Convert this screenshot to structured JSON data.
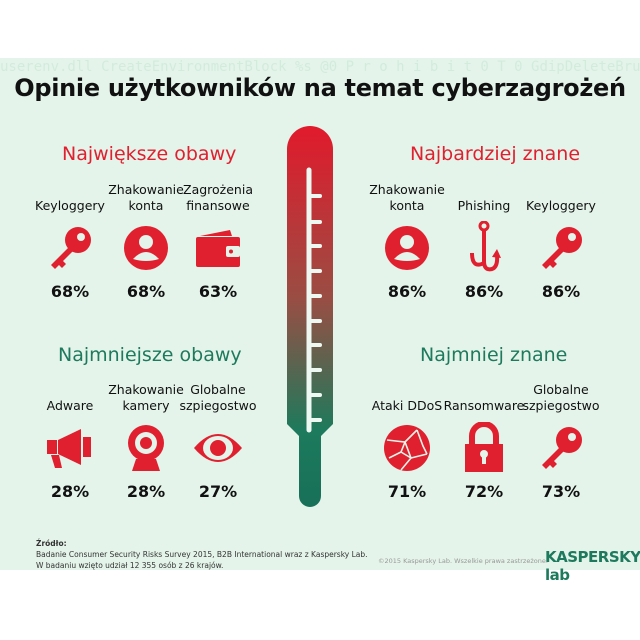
{
  "title": "Opinie użytkowników na temat cyberzagrożeń",
  "colors": {
    "red": "#e0202f",
    "green": "#1d7a5c",
    "background": "#e4f4ea"
  },
  "sections": [
    {
      "heading": "Największe obawy",
      "items": [
        {
          "label": "Keyloggery",
          "icon": "key-icon",
          "value": "68%"
        },
        {
          "label": "Zhakowanie konta",
          "icon": "user-icon",
          "value": "68%"
        },
        {
          "label": "Zagrożenia finansowe",
          "icon": "wallet-icon",
          "value": "63%"
        }
      ]
    },
    {
      "heading": "Najbardziej znane",
      "items": [
        {
          "label": "Zhakowanie konta",
          "icon": "user-icon",
          "value": "86%"
        },
        {
          "label": "Phishing",
          "icon": "fishhook-icon",
          "value": "86%"
        },
        {
          "label": "Keyloggery",
          "icon": "key-icon",
          "value": "86%"
        }
      ]
    },
    {
      "heading": "Najmniejsze obawy",
      "items": [
        {
          "label": "Adware",
          "icon": "megaphone-icon",
          "value": "28%"
        },
        {
          "label": "Zhakowanie kamery",
          "icon": "webcam-icon",
          "value": "28%"
        },
        {
          "label": "Globalne szpiegostwo",
          "icon": "eye-icon",
          "value": "27%"
        }
      ]
    },
    {
      "heading": "Najmniej znane",
      "items": [
        {
          "label": "Ataki DDoS",
          "icon": "network-globe-icon",
          "value": "71%"
        },
        {
          "label": "Ransomware",
          "icon": "padlock-icon",
          "value": "72%"
        },
        {
          "label": "Globalne szpiegostwo",
          "icon": "key-icon",
          "value": "73%"
        }
      ]
    }
  ],
  "footer": {
    "source_label": "Źródło:",
    "line1": "Badanie Consumer Security Risks Survey 2015, B2B International wraz z Kaspersky Lab.",
    "line2": "W badaniu wzięto udział 12 355 osób z 26 krajów.",
    "copyright": "©2015 Kaspersky Lab. Wszelkie prawa zastrzeżone.",
    "logo": "KASPERSKY lab"
  }
}
